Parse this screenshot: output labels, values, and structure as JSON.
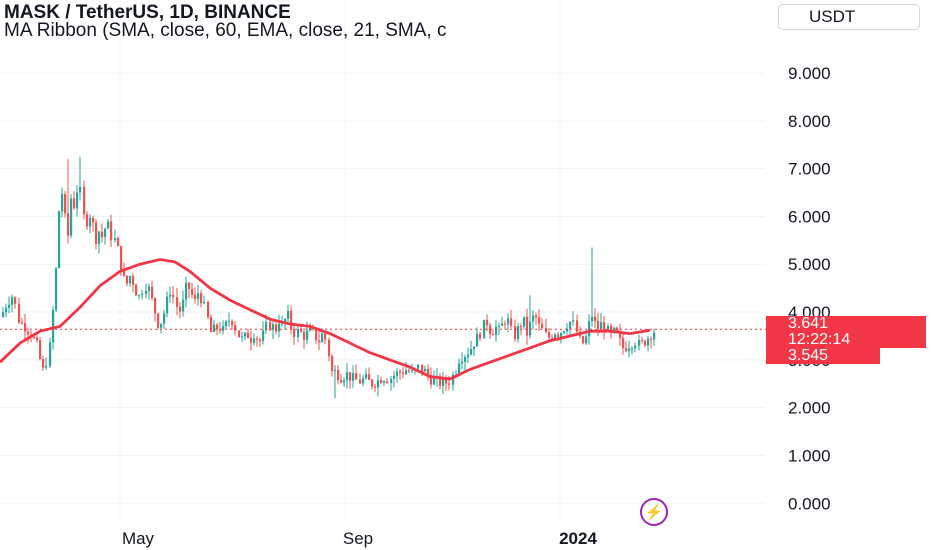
{
  "header": {
    "title": "MASK / TetherUS, 1D, BINANCE",
    "indicator": "MA Ribbon (SMA, close, 60, EMA, close, 21, SMA, c"
  },
  "currency_button": {
    "label": "USDT"
  },
  "last_price": {
    "value": "3.641",
    "countdown": "12:22:14"
  },
  "ma_value": "3.545",
  "icons": {
    "flash": "lightning-bolt-icon"
  },
  "colors": {
    "up": "#26a69a",
    "down": "#ef5350",
    "ma": "#f23645",
    "price_line": "#f23645",
    "grid": "#f0f3fa"
  },
  "chart_data": {
    "type": "candlestick",
    "title": "MASK / TetherUS, 1D, BINANCE",
    "y_ticks": [
      "0.000",
      "1.000",
      "2.000",
      "3.000",
      "4.000",
      "5.000",
      "6.000",
      "7.000",
      "8.000",
      "9.000"
    ],
    "y_tick_values": [
      0,
      1,
      2,
      3,
      4,
      5,
      6,
      7,
      8,
      9
    ],
    "ylim": [
      -0.35,
      9.9
    ],
    "x_ticks": [
      "May",
      "Sep",
      "2024"
    ],
    "grid": true,
    "last_price": 3.641,
    "ma_series": {
      "name": "MA Ribbon",
      "points": [
        [
          0,
          2.95
        ],
        [
          20,
          3.35
        ],
        [
          40,
          3.6
        ],
        [
          60,
          3.7
        ],
        [
          80,
          4.1
        ],
        [
          100,
          4.55
        ],
        [
          120,
          4.85
        ],
        [
          140,
          5.0
        ],
        [
          160,
          5.1
        ],
        [
          175,
          5.05
        ],
        [
          190,
          4.85
        ],
        [
          210,
          4.5
        ],
        [
          230,
          4.25
        ],
        [
          250,
          4.05
        ],
        [
          270,
          3.85
        ],
        [
          290,
          3.75
        ],
        [
          310,
          3.7
        ],
        [
          330,
          3.55
        ],
        [
          350,
          3.35
        ],
        [
          370,
          3.15
        ],
        [
          390,
          3.0
        ],
        [
          410,
          2.85
        ],
        [
          430,
          2.65
        ],
        [
          450,
          2.6
        ],
        [
          470,
          2.8
        ],
        [
          490,
          2.95
        ],
        [
          510,
          3.1
        ],
        [
          530,
          3.25
        ],
        [
          550,
          3.4
        ],
        [
          570,
          3.5
        ],
        [
          590,
          3.6
        ],
        [
          610,
          3.6
        ],
        [
          630,
          3.55
        ],
        [
          650,
          3.62
        ]
      ]
    },
    "candle_path": [
      [
        0,
        3.9
      ],
      [
        6,
        4.2
      ],
      [
        12,
        4.35
      ],
      [
        18,
        3.8
      ],
      [
        24,
        3.7
      ],
      [
        30,
        3.55
      ],
      [
        36,
        3.3
      ],
      [
        42,
        2.75
      ],
      [
        48,
        3.15
      ],
      [
        54,
        4.6
      ],
      [
        58,
        6.2
      ],
      [
        62,
        6.6
      ],
      [
        66,
        5.3
      ],
      [
        70,
        6.4
      ],
      [
        74,
        6.2
      ],
      [
        78,
        6.8
      ],
      [
        82,
        6.0
      ],
      [
        86,
        5.9
      ],
      [
        90,
        6.1
      ],
      [
        94,
        5.5
      ],
      [
        98,
        5.7
      ],
      [
        102,
        5.55
      ],
      [
        106,
        5.9
      ],
      [
        110,
        5.6
      ],
      [
        114,
        5.5
      ],
      [
        118,
        5.2
      ],
      [
        122,
        4.7
      ],
      [
        126,
        4.6
      ],
      [
        130,
        4.8
      ],
      [
        134,
        4.5
      ],
      [
        138,
        4.3
      ],
      [
        142,
        4.5
      ],
      [
        146,
        4.6
      ],
      [
        150,
        4.3
      ],
      [
        154,
        4.0
      ],
      [
        158,
        3.7
      ],
      [
        162,
        3.9
      ],
      [
        166,
        4.2
      ],
      [
        170,
        4.5
      ],
      [
        174,
        4.2
      ],
      [
        178,
        4.0
      ],
      [
        182,
        4.2
      ],
      [
        186,
        4.6
      ],
      [
        190,
        4.4
      ],
      [
        194,
        4.2
      ],
      [
        198,
        4.45
      ],
      [
        202,
        4.2
      ],
      [
        206,
        3.9
      ],
      [
        210,
        3.55
      ],
      [
        214,
        3.65
      ],
      [
        218,
        3.7
      ],
      [
        222,
        3.6
      ],
      [
        226,
        3.75
      ],
      [
        230,
        3.9
      ],
      [
        234,
        3.7
      ],
      [
        238,
        3.5
      ],
      [
        242,
        3.4
      ],
      [
        246,
        3.55
      ],
      [
        250,
        3.45
      ],
      [
        254,
        3.6
      ],
      [
        258,
        3.35
      ],
      [
        262,
        3.5
      ],
      [
        266,
        3.7
      ],
      [
        270,
        3.75
      ],
      [
        274,
        3.6
      ],
      [
        278,
        3.85
      ],
      [
        282,
        3.65
      ],
      [
        286,
        4.0
      ],
      [
        290,
        3.7
      ],
      [
        294,
        3.55
      ],
      [
        298,
        3.6
      ],
      [
        302,
        3.5
      ],
      [
        306,
        3.55
      ],
      [
        310,
        3.6
      ],
      [
        314,
        3.5
      ],
      [
        318,
        3.4
      ],
      [
        322,
        3.55
      ],
      [
        326,
        3.35
      ],
      [
        330,
        2.75
      ],
      [
        334,
        2.75
      ],
      [
        340,
        2.65
      ],
      [
        346,
        2.7
      ],
      [
        352,
        2.6
      ],
      [
        358,
        2.55
      ],
      [
        364,
        2.6
      ],
      [
        370,
        2.5
      ],
      [
        376,
        2.55
      ],
      [
        382,
        2.65
      ],
      [
        388,
        2.6
      ],
      [
        394,
        2.7
      ],
      [
        400,
        2.75
      ],
      [
        406,
        2.8
      ],
      [
        412,
        2.7
      ],
      [
        418,
        2.85
      ],
      [
        424,
        2.75
      ],
      [
        430,
        2.6
      ],
      [
        436,
        2.55
      ],
      [
        442,
        2.5
      ],
      [
        448,
        2.55
      ],
      [
        454,
        2.75
      ],
      [
        458,
        3.05
      ],
      [
        462,
        3.1
      ],
      [
        466,
        3.15
      ],
      [
        470,
        3.25
      ],
      [
        474,
        3.4
      ],
      [
        478,
        3.5
      ],
      [
        482,
        3.7
      ],
      [
        486,
        3.8
      ],
      [
        490,
        3.55
      ],
      [
        494,
        3.7
      ],
      [
        498,
        3.6
      ],
      [
        502,
        3.75
      ],
      [
        506,
        3.9
      ],
      [
        510,
        3.6
      ],
      [
        514,
        3.5
      ],
      [
        518,
        3.7
      ],
      [
        522,
        3.85
      ],
      [
        526,
        3.55
      ],
      [
        530,
        3.8
      ],
      [
        534,
        3.95
      ],
      [
        538,
        3.7
      ],
      [
        542,
        3.6
      ],
      [
        546,
        3.45
      ],
      [
        550,
        3.5
      ],
      [
        554,
        3.6
      ],
      [
        558,
        3.55
      ],
      [
        562,
        3.65
      ],
      [
        566,
        3.75
      ],
      [
        570,
        3.8
      ],
      [
        574,
        3.7
      ],
      [
        578,
        3.4
      ],
      [
        582,
        3.35
      ],
      [
        586,
        3.5
      ],
      [
        590,
        4.0
      ],
      [
        594,
        3.75
      ],
      [
        598,
        3.65
      ],
      [
        602,
        3.8
      ],
      [
        606,
        3.6
      ],
      [
        610,
        3.5
      ],
      [
        614,
        3.6
      ],
      [
        618,
        3.4
      ],
      [
        622,
        3.25
      ],
      [
        626,
        3.3
      ],
      [
        630,
        3.35
      ],
      [
        634,
        3.4
      ],
      [
        638,
        3.3
      ],
      [
        642,
        3.35
      ],
      [
        646,
        3.45
      ],
      [
        650,
        3.55
      ],
      [
        655,
        3.641
      ]
    ]
  }
}
